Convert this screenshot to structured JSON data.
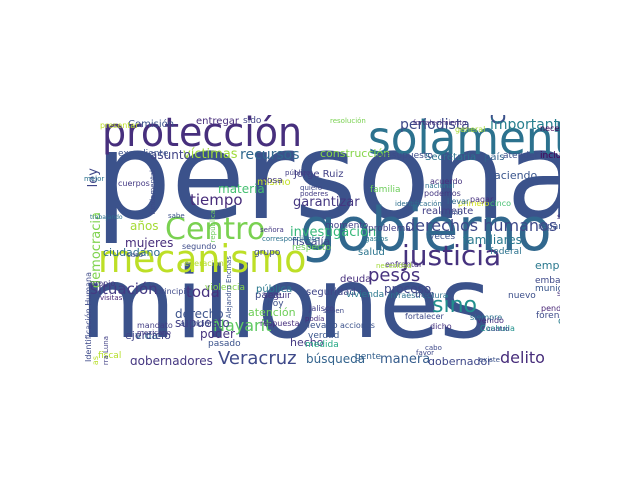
{
  "cloud": {
    "words": [
      {
        "text": "persona",
        "color": "#3b528b"
      },
      {
        "text": "millones",
        "color": "#3b528b"
      },
      {
        "text": "gobierno",
        "color": "#31688e"
      },
      {
        "text": "solamente",
        "color": "#2c728e"
      },
      {
        "text": "protección",
        "color": "#472f7d"
      },
      {
        "text": "mecanismo",
        "color": "#bddf26"
      },
      {
        "text": "Centro",
        "color": "#7ad151"
      },
      {
        "text": "justicia",
        "color": "#46327e"
      },
      {
        "text": "casos",
        "color": "#3b528b"
      },
      {
        "text": "derechos humanos",
        "color": "#3e4989"
      },
      {
        "text": "sino",
        "color": "#218f8d"
      },
      {
        "text": "pesos",
        "color": "#46327e"
      },
      {
        "text": "pueblo",
        "color": "#453781"
      },
      {
        "text": "Veracruz",
        "color": "#3e4989"
      },
      {
        "text": "Nayarit",
        "color": "#5ec962"
      },
      {
        "text": "delito",
        "color": "#472d7b"
      },
      {
        "text": "situación",
        "color": "#443a83"
      },
      {
        "text": "toda",
        "color": "#46327e"
      },
      {
        "text": "importante",
        "color": "#277f8e"
      },
      {
        "text": "periodista",
        "color": "#3e4a89"
      },
      {
        "text": "Comisión",
        "color": "#3b528b"
      },
      {
        "text": "entregar",
        "color": "#472d7b"
      },
      {
        "text": "sido",
        "color": "#414487"
      },
      {
        "text": "recursos",
        "color": "#31688e"
      },
      {
        "text": "construcción",
        "color": "#86d549"
      },
      {
        "text": "víctimas",
        "color": "#a0da39"
      },
      {
        "text": "asunto",
        "color": "#414487"
      },
      {
        "text": "tiempo",
        "color": "#472c7a"
      },
      {
        "text": "materia",
        "color": "#44bf70"
      },
      {
        "text": "mismo",
        "color": "#c2df23"
      },
      {
        "text": "investigación",
        "color": "#35b779"
      },
      {
        "text": "garantizar",
        "color": "#453781"
      },
      {
        "text": "Jorge Ruiz",
        "color": "#424186"
      },
      {
        "text": "familiares",
        "color": "#2a788e"
      },
      {
        "text": "mujeres",
        "color": "#472d7b"
      },
      {
        "text": "fiscalía",
        "color": "#3e4989"
      },
      {
        "text": "respecto",
        "color": "#6ccd5a"
      },
      {
        "text": "democracia",
        "color": "#7fd34e"
      },
      {
        "text": "ley",
        "color": "#404688"
      },
      {
        "text": "años",
        "color": "#a5db36"
      },
      {
        "text": "derecho",
        "color": "#3b528b"
      },
      {
        "text": "supuesto",
        "color": "#424086"
      },
      {
        "text": "atención",
        "color": "#6ece58"
      },
      {
        "text": "poder",
        "color": "#46337f"
      },
      {
        "text": "hecho",
        "color": "#453882"
      },
      {
        "text": "búsqueda",
        "color": "#33638d"
      },
      {
        "text": "manera",
        "color": "#365d8d"
      },
      {
        "text": "gobernador",
        "color": "#3f4889"
      },
      {
        "text": "gobernadores",
        "color": "#453781"
      },
      {
        "text": "proceso",
        "color": "#3f4788"
      },
      {
        "text": "seguridad",
        "color": "#404588"
      },
      {
        "text": "parte",
        "color": "#3e4a89"
      },
      {
        "text": "haciendo",
        "color": "#39558c"
      },
      {
        "text": "atender",
        "color": "#3d4e8a"
      },
      {
        "text": "incluso",
        "color": "#440154"
      },
      {
        "text": "Secretaría",
        "color": "#2c738e"
      },
      {
        "text": "país",
        "color": "#33638d"
      },
      {
        "text": "presupuesto",
        "color": "#3e4c8a"
      },
      {
        "text": "identificación",
        "color": "#2e6f8e"
      },
      {
        "text": "expediente",
        "color": "#3b518b"
      },
      {
        "text": "mandato",
        "color": "#433d84"
      },
      {
        "text": "vida",
        "color": "#31678e"
      },
      {
        "text": "empresa",
        "color": "#2a788e"
      },
      {
        "text": "obra",
        "color": "#287d8e"
      },
      {
        "text": "nuevo",
        "color": "#3c4f8a"
      },
      {
        "text": "pendiente",
        "color": "#482576"
      },
      {
        "text": "pasado",
        "color": "#3b528b"
      },
      {
        "text": "apoyo",
        "color": "#3f4889"
      },
      {
        "text": "gente",
        "color": "#34618d"
      },
      {
        "text": "fiscal",
        "color": "#b5de2b"
      },
      {
        "text": "ejercicio",
        "color": "#414487"
      },
      {
        "text": "segundo",
        "color": "#3e4c8a"
      },
      {
        "text": "deuda",
        "color": "#472f7d"
      },
      {
        "text": "salud",
        "color": "#2b748e"
      },
      {
        "text": "momento",
        "color": "#424186"
      },
      {
        "text": "pública",
        "color": "#2a788e"
      },
      {
        "text": "cosa",
        "color": "#453882"
      },
      {
        "text": "hoy",
        "color": "#3d4e8a"
      },
      {
        "text": "realmente",
        "color": "#424086"
      },
      {
        "text": "ciudadano",
        "color": "#2f6c8e"
      },
      {
        "text": "embargo",
        "color": "#3e4989"
      },
      {
        "text": "municipio",
        "color": "#39568c"
      },
      {
        "text": "forense",
        "color": "#3e4c8a"
      },
      {
        "text": "sólo",
        "color": "#46307e"
      },
      {
        "text": "reparaciones",
        "color": "#3b528b"
      },
      {
        "text": "problema",
        "color": "#424186"
      },
      {
        "text": "veces",
        "color": "#3b518b"
      },
      {
        "text": "federal",
        "color": "#2c728e"
      },
      {
        "text": "grupo",
        "color": "#3e4c8a"
      },
      {
        "text": "respuesta",
        "color": "#472f7d"
      },
      {
        "text": "medida",
        "color": "#22a884"
      },
      {
        "text": "vivienda",
        "color": "#2a788e"
      },
      {
        "text": "infraestructura",
        "color": "#2d708e"
      },
      {
        "text": "bien",
        "color": "#3e4a89"
      },
      {
        "text": "verdad",
        "color": "#39568c"
      },
      {
        "text": "llevado",
        "color": "#3b528b"
      },
      {
        "text": "fortalecer",
        "color": "#3e4989"
      },
      {
        "text": "propio",
        "color": "#453781"
      },
      {
        "text": "Jalisco",
        "color": "#433e85"
      },
      {
        "text": "violencia",
        "color": "#86d549"
      },
      {
        "text": "seguir",
        "color": "#453781"
      },
      {
        "text": "principio",
        "color": "#3e4989"
      },
      {
        "text": "necesitamos",
        "color": "#440154"
      },
      {
        "text": "general",
        "color": "#a8db34"
      },
      {
        "text": "fortalecimiento",
        "color": "#472d7b"
      },
      {
        "text": "resolución",
        "color": "#7ad151"
      },
      {
        "text": "presentar",
        "color": "#bddf26"
      },
      {
        "text": "Federación",
        "color": "#b5de2b"
      },
      {
        "text": "cuerpos",
        "color": "#443983"
      },
      {
        "text": "fundamental",
        "color": "#3e4a89"
      },
      {
        "text": "mejor",
        "color": "#2c728e"
      },
      {
        "text": "público",
        "color": "#433e85"
      },
      {
        "text": "acuerdo",
        "color": "#46327e"
      },
      {
        "text": "podemos",
        "color": "#453781"
      },
      {
        "text": "nacional",
        "color": "#2c728e"
      },
      {
        "text": "primero",
        "color": "#d0e11c"
      },
      {
        "text": "cinco",
        "color": "#44bf70"
      },
      {
        "text": "último",
        "color": "#3b528b"
      },
      {
        "text": "llevar",
        "color": "#31688e"
      },
      {
        "text": "familia",
        "color": "#6ccd5a"
      },
      {
        "text": "quiero",
        "color": "#3f4889"
      },
      {
        "text": "poderes",
        "color": "#433d84"
      },
      {
        "text": "señora",
        "color": "#443983"
      },
      {
        "text": "sabe",
        "color": "#3b518b"
      },
      {
        "text": "pueden",
        "color": "#3e4989"
      },
      {
        "text": "sacaron",
        "color": "#472f7d"
      },
      {
        "text": "dar cuenta",
        "color": "#3d4d8a"
      },
      {
        "text": "enfrentar",
        "color": "#46327e"
      },
      {
        "text": "necesidad",
        "color": "#a2da37"
      },
      {
        "text": "gastos",
        "color": "#2a788e"
      },
      {
        "text": "podía",
        "color": "#472f7d"
      },
      {
        "text": "acciones",
        "color": "#3b528b"
      },
      {
        "text": "siempre",
        "color": "#2c728e"
      },
      {
        "text": "Coahuila",
        "color": "#21918c"
      },
      {
        "text": "cabo",
        "color": "#3e4989"
      },
      {
        "text": "favor",
        "color": "#3f4889"
      },
      {
        "text": "existe",
        "color": "#3b528b"
      },
      {
        "text": "dicho",
        "color": "#46327e"
      },
      {
        "text": "Huellas",
        "color": "#b8de29"
      },
      {
        "text": "Identificación Humana",
        "color": "#3e4a89"
      },
      {
        "text": "visitas",
        "color": "#482576"
      },
      {
        "text": "Sierra Luna",
        "color": "#424086"
      },
      {
        "text": "mexicano",
        "color": "#453882"
      },
      {
        "text": "trabajando",
        "color": "#2c728e"
      },
      {
        "text": "Alejandro Encinas",
        "color": "#3b528b"
      },
      {
        "text": "república",
        "color": "#6ccd5a"
      },
      {
        "text": "correspondiente",
        "color": "#2c728e"
      },
      {
        "text": "saben",
        "color": "#3e4989"
      },
      {
        "text": "cuatro",
        "color": "#3f4889"
      },
      {
        "text": "venido",
        "color": "#472f7d"
      },
      {
        "text": "pagar",
        "color": "#46307e"
      },
      {
        "text": "caso",
        "color": "#3f4889"
      },
      {
        "text": "atención",
        "color": "#3d4d8a"
      }
    ]
  }
}
